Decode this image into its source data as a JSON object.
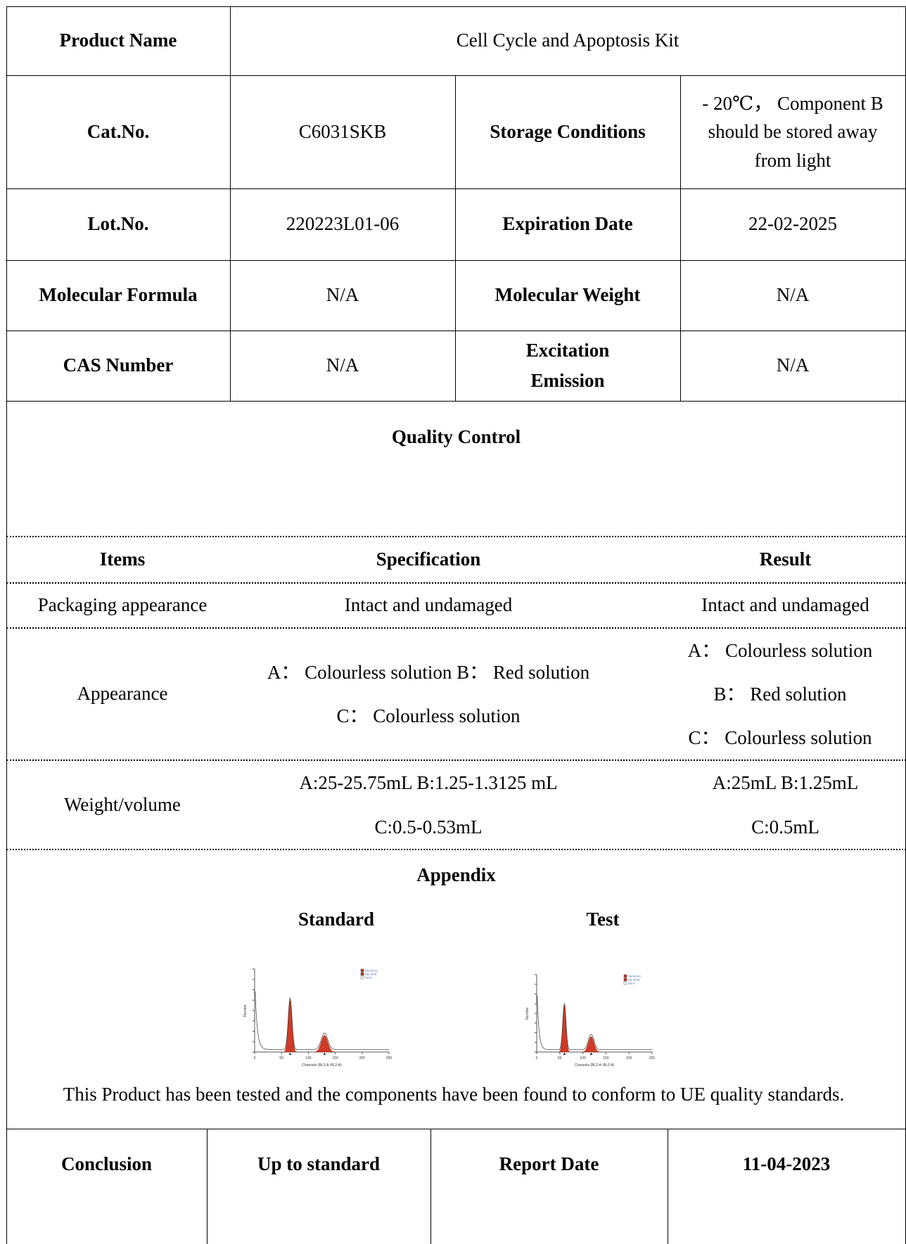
{
  "product": {
    "name_label": "Product Name",
    "name_value": "Cell Cycle and Apoptosis Kit",
    "cat_label": "Cat.No.",
    "cat_value": "C6031SKB",
    "storage_label": "Storage Conditions",
    "storage_line1": "- 20℃， Component B",
    "storage_line2": "should be stored away",
    "storage_line3": "from light",
    "lot_label": "Lot.No.",
    "lot_value": "220223L01-06",
    "expiry_label": "Expiration Date",
    "expiry_value": "22-02-2025",
    "formula_label": "Molecular Formula",
    "formula_value": "N/A",
    "weight_label": "Molecular Weight",
    "weight_value": "N/A",
    "cas_label": "CAS Number",
    "cas_value": "N/A",
    "excitation_label": "Excitation",
    "emission_label": "Emission",
    "exem_value": "N/A"
  },
  "quality_control": {
    "heading": "Quality Control",
    "columns": [
      "Items",
      "Specification",
      "Result"
    ],
    "rows": [
      {
        "item": "Packaging appearance",
        "spec": [
          "Intact and undamaged"
        ],
        "result": [
          "Intact and undamaged"
        ]
      },
      {
        "item": "Appearance",
        "spec": [
          "A： Colourless solution B： Red solution",
          "C： Colourless solution"
        ],
        "result": [
          "A： Colourless solution",
          "B： Red solution",
          "C： Colourless solution"
        ]
      },
      {
        "item": "Weight/volume",
        "spec": [
          "A:25-25.75mL B:1.25-1.3125 mL",
          "C:0.5-0.53mL"
        ],
        "result": [
          "A:25mL B:1.25mL",
          "C:0.5mL"
        ]
      }
    ]
  },
  "appendix": {
    "heading": "Appendix",
    "standard_label": "Standard",
    "test_label": "Test",
    "note": "This Product has been tested and the components have been found to conform to UE quality standards."
  },
  "chart_data": [
    {
      "type": "area",
      "title": "Standard",
      "xlabel": "Channels (BL2-A::BL2-A)",
      "ylabel": "Number",
      "xlim": [
        0,
        250
      ],
      "x_ticks": [
        "0",
        "50",
        "100",
        "150",
        "200",
        "250"
      ],
      "legend": [
        "Dip G0-G1",
        "Dip G2-M",
        "Dip S"
      ],
      "legend_colors": [
        "#cc3322",
        "#cc3322",
        "#ffffff"
      ],
      "series": [
        {
          "name": "Dip G0-G1",
          "peak_x": 66,
          "peak_rel_height": 0.62
        },
        {
          "name": "Dip G2-M",
          "peak_x": 130,
          "peak_rel_height": 0.2
        }
      ]
    },
    {
      "type": "area",
      "title": "Test",
      "xlabel": "Channels (BL2-A::BL2-A)",
      "ylabel": "Number",
      "xlim": [
        0,
        250
      ],
      "x_ticks": [
        "0",
        "50",
        "100",
        "150",
        "200",
        "250"
      ],
      "legend": [
        "Dip G0-G1",
        "Dip G2-M",
        "Dip S"
      ],
      "legend_colors": [
        "#cc3322",
        "#cc3322",
        "#ffffff"
      ],
      "series": [
        {
          "name": "Dip G0-G1",
          "peak_x": 60,
          "peak_rel_height": 0.6
        },
        {
          "name": "Dip G2-M",
          "peak_x": 118,
          "peak_rel_height": 0.2
        }
      ]
    }
  ],
  "footer": {
    "conclusion_label": "Conclusion",
    "conclusion_value": "Up to standard",
    "report_label": "Report Date",
    "report_value": "11-04-2023"
  }
}
